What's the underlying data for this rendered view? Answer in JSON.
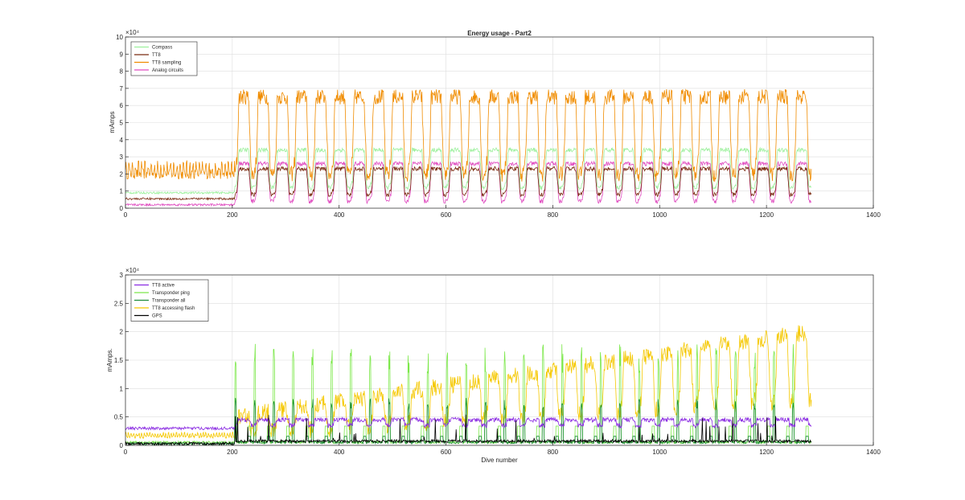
{
  "chart_data": [
    {
      "type": "line",
      "title": "Energy usage - Part2",
      "xlabel": "",
      "ylabel": "mAmps",
      "xlim": [
        0,
        1400
      ],
      "ylim": [
        0,
        10
      ],
      "y_exponent_label": "×10⁴",
      "x_ticks": [
        "0",
        "200",
        "400",
        "600",
        "800",
        "1000",
        "1200",
        "1400"
      ],
      "y_ticks": [
        "0",
        "1",
        "2",
        "3",
        "4",
        "5",
        "6",
        "7",
        "8",
        "9",
        "10"
      ],
      "grid": true,
      "legend_position": "top-left",
      "n_dives": 1284,
      "transition_dive": 205,
      "series": [
        {
          "name": "Compass",
          "color": "#9cf09c",
          "pre_level": 0.9,
          "trough": 1.2,
          "peak": 3.4
        },
        {
          "name": "TT8",
          "color": "#7a2a10",
          "pre_level": 0.55,
          "trough": 0.8,
          "peak": 2.3
        },
        {
          "name": "TT8 sampling",
          "color": "#f08c00",
          "pre_level": 2.0,
          "trough": 2.0,
          "peak": 6.5
        },
        {
          "name": "Analog circuits",
          "color": "#e04cc0",
          "pre_level": 0.2,
          "trough": 0.4,
          "peak": 2.6
        }
      ]
    },
    {
      "type": "line",
      "title": "",
      "xlabel": "Dive number",
      "ylabel": "mAmps.",
      "xlim": [
        0,
        1400
      ],
      "ylim": [
        0,
        3
      ],
      "y_exponent_label": "×10⁴",
      "x_ticks": [
        "0",
        "200",
        "400",
        "600",
        "800",
        "1000",
        "1200",
        "1400"
      ],
      "y_ticks": [
        "0",
        "0.5",
        "1",
        "1.5",
        "2",
        "2.5",
        "3"
      ],
      "grid": true,
      "legend_position": "top-left",
      "n_dives": 1284,
      "transition_dive": 205,
      "series": [
        {
          "name": "TT8 active",
          "color": "#8a2be2",
          "pre_level": 0.3,
          "level": 0.45
        },
        {
          "name": "Transponder ping",
          "color": "#7ce84a",
          "pre_level": 0.05,
          "spike_peak": 1.7
        },
        {
          "name": "Transponder all",
          "color": "#1e8c3a",
          "pre_level": 0.03,
          "spike_peak": 0.8
        },
        {
          "name": "TT8 accessing flash",
          "color": "#f5c800",
          "pre_level": 0.15,
          "start": 0.5,
          "end": 2.0
        },
        {
          "name": "GPS",
          "color": "#000000",
          "pre_level": 0.03,
          "level": 0.05
        }
      ]
    }
  ]
}
